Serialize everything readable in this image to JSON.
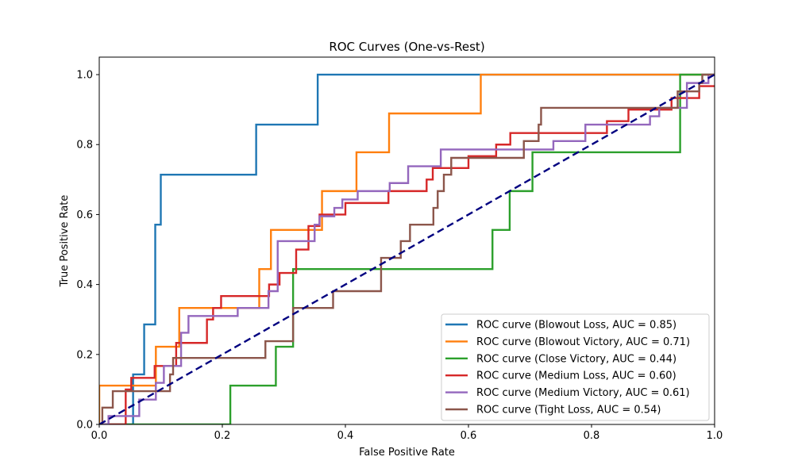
{
  "chart_data": {
    "type": "line",
    "title": "ROC Curves (One-vs-Rest)",
    "xlabel": "False Positive Rate",
    "ylabel": "True Positive Rate",
    "xlim": [
      0.0,
      1.0
    ],
    "ylim": [
      0.0,
      1.05
    ],
    "xticks": [
      "0.0",
      "0.2",
      "0.4",
      "0.6",
      "0.8",
      "1.0"
    ],
    "yticks": [
      "0.0",
      "0.2",
      "0.4",
      "0.6",
      "0.8",
      "1.0"
    ],
    "grid": false,
    "legend_position": "bottom-right",
    "diagonal": {
      "color": "#000080",
      "style": "dashed",
      "points": [
        [
          0,
          0
        ],
        [
          1,
          1
        ]
      ]
    },
    "series": [
      {
        "name": "ROC curve (Blowout Loss, AUC = 0.85)",
        "color": "#1f77b4",
        "points": [
          [
            0,
            0
          ],
          [
            0.055,
            0
          ],
          [
            0.055,
            0.143
          ],
          [
            0.073,
            0.143
          ],
          [
            0.073,
            0.286
          ],
          [
            0.091,
            0.286
          ],
          [
            0.091,
            0.571
          ],
          [
            0.1,
            0.571
          ],
          [
            0.1,
            0.714
          ],
          [
            0.255,
            0.714
          ],
          [
            0.255,
            0.857
          ],
          [
            0.355,
            0.857
          ],
          [
            0.355,
            1.0
          ],
          [
            1.0,
            1.0
          ]
        ]
      },
      {
        "name": "ROC curve (Blowout Victory, AUC = 0.71)",
        "color": "#ff7f0e",
        "points": [
          [
            0,
            0
          ],
          [
            0,
            0.111
          ],
          [
            0.092,
            0.111
          ],
          [
            0.092,
            0.222
          ],
          [
            0.13,
            0.222
          ],
          [
            0.13,
            0.333
          ],
          [
            0.26,
            0.333
          ],
          [
            0.26,
            0.444
          ],
          [
            0.279,
            0.444
          ],
          [
            0.279,
            0.556
          ],
          [
            0.362,
            0.556
          ],
          [
            0.362,
            0.667
          ],
          [
            0.418,
            0.667
          ],
          [
            0.418,
            0.778
          ],
          [
            0.471,
            0.778
          ],
          [
            0.471,
            0.889
          ],
          [
            0.62,
            0.889
          ],
          [
            0.62,
            1.0
          ],
          [
            1.0,
            1.0
          ]
        ]
      },
      {
        "name": "ROC curve (Close Victory, AUC = 0.44)",
        "color": "#2ca02c",
        "points": [
          [
            0,
            0
          ],
          [
            0.213,
            0
          ],
          [
            0.213,
            0.111
          ],
          [
            0.287,
            0.111
          ],
          [
            0.287,
            0.222
          ],
          [
            0.315,
            0.222
          ],
          [
            0.315,
            0.444
          ],
          [
            0.639,
            0.444
          ],
          [
            0.639,
            0.556
          ],
          [
            0.667,
            0.556
          ],
          [
            0.667,
            0.667
          ],
          [
            0.704,
            0.667
          ],
          [
            0.704,
            0.778
          ],
          [
            0.944,
            0.778
          ],
          [
            0.944,
            1.0
          ],
          [
            1.0,
            1.0
          ]
        ]
      },
      {
        "name": "ROC curve (Medium Loss, AUC = 0.60)",
        "color": "#d62728",
        "points": [
          [
            0,
            0
          ],
          [
            0.043,
            0
          ],
          [
            0.043,
            0.1
          ],
          [
            0.052,
            0.1
          ],
          [
            0.052,
            0.133
          ],
          [
            0.09,
            0.133
          ],
          [
            0.09,
            0.167
          ],
          [
            0.125,
            0.167
          ],
          [
            0.125,
            0.233
          ],
          [
            0.175,
            0.233
          ],
          [
            0.175,
            0.3
          ],
          [
            0.185,
            0.3
          ],
          [
            0.185,
            0.333
          ],
          [
            0.198,
            0.333
          ],
          [
            0.198,
            0.367
          ],
          [
            0.276,
            0.367
          ],
          [
            0.276,
            0.4
          ],
          [
            0.293,
            0.4
          ],
          [
            0.293,
            0.433
          ],
          [
            0.32,
            0.433
          ],
          [
            0.32,
            0.5
          ],
          [
            0.34,
            0.5
          ],
          [
            0.34,
            0.567
          ],
          [
            0.358,
            0.567
          ],
          [
            0.358,
            0.6
          ],
          [
            0.4,
            0.6
          ],
          [
            0.4,
            0.633
          ],
          [
            0.47,
            0.633
          ],
          [
            0.47,
            0.667
          ],
          [
            0.532,
            0.667
          ],
          [
            0.532,
            0.7
          ],
          [
            0.542,
            0.7
          ],
          [
            0.542,
            0.733
          ],
          [
            0.6,
            0.733
          ],
          [
            0.6,
            0.767
          ],
          [
            0.645,
            0.767
          ],
          [
            0.645,
            0.8
          ],
          [
            0.668,
            0.8
          ],
          [
            0.668,
            0.833
          ],
          [
            0.77,
            0.833
          ],
          [
            0.77,
            0.833
          ],
          [
            0.825,
            0.833
          ],
          [
            0.825,
            0.867
          ],
          [
            0.86,
            0.867
          ],
          [
            0.86,
            0.9
          ],
          [
            0.93,
            0.9
          ],
          [
            0.93,
            0.933
          ],
          [
            0.975,
            0.933
          ],
          [
            0.975,
            0.967
          ],
          [
            1.0,
            0.967
          ]
        ]
      },
      {
        "name": "ROC curve (Medium Victory, AUC = 0.61)",
        "color": "#9467bd",
        "points": [
          [
            0,
            0
          ],
          [
            0.015,
            0
          ],
          [
            0.015,
            0.024
          ],
          [
            0.065,
            0.024
          ],
          [
            0.065,
            0.071
          ],
          [
            0.092,
            0.071
          ],
          [
            0.092,
            0.119
          ],
          [
            0.105,
            0.119
          ],
          [
            0.105,
            0.167
          ],
          [
            0.133,
            0.167
          ],
          [
            0.133,
            0.214
          ],
          [
            0.133,
            0.214
          ],
          [
            0.133,
            0.262
          ],
          [
            0.145,
            0.262
          ],
          [
            0.145,
            0.31
          ],
          [
            0.155,
            0.31
          ],
          [
            0.155,
            0.31
          ],
          [
            0.225,
            0.31
          ],
          [
            0.225,
            0.333
          ],
          [
            0.275,
            0.333
          ],
          [
            0.275,
            0.381
          ],
          [
            0.29,
            0.381
          ],
          [
            0.29,
            0.524
          ],
          [
            0.35,
            0.524
          ],
          [
            0.35,
            0.571
          ],
          [
            0.358,
            0.571
          ],
          [
            0.358,
            0.595
          ],
          [
            0.382,
            0.595
          ],
          [
            0.382,
            0.619
          ],
          [
            0.395,
            0.619
          ],
          [
            0.395,
            0.643
          ],
          [
            0.42,
            0.643
          ],
          [
            0.42,
            0.667
          ],
          [
            0.472,
            0.667
          ],
          [
            0.472,
            0.69
          ],
          [
            0.502,
            0.69
          ],
          [
            0.502,
            0.738
          ],
          [
            0.555,
            0.738
          ],
          [
            0.555,
            0.786
          ],
          [
            0.738,
            0.786
          ],
          [
            0.738,
            0.81
          ],
          [
            0.79,
            0.81
          ],
          [
            0.79,
            0.857
          ],
          [
            0.895,
            0.857
          ],
          [
            0.895,
            0.881
          ],
          [
            0.91,
            0.881
          ],
          [
            0.91,
            0.905
          ],
          [
            0.955,
            0.905
          ],
          [
            0.955,
            0.976
          ],
          [
            0.99,
            0.976
          ],
          [
            0.99,
            1.0
          ],
          [
            1.0,
            1.0
          ]
        ]
      },
      {
        "name": "ROC curve (Tight Loss, AUC = 0.54)",
        "color": "#8c564b",
        "points": [
          [
            0,
            0
          ],
          [
            0.005,
            0
          ],
          [
            0.005,
            0.048
          ],
          [
            0.022,
            0.048
          ],
          [
            0.022,
            0.095
          ],
          [
            0.115,
            0.095
          ],
          [
            0.115,
            0.143
          ],
          [
            0.12,
            0.143
          ],
          [
            0.12,
            0.19
          ],
          [
            0.27,
            0.19
          ],
          [
            0.27,
            0.238
          ],
          [
            0.315,
            0.238
          ],
          [
            0.315,
            0.333
          ],
          [
            0.38,
            0.333
          ],
          [
            0.38,
            0.381
          ],
          [
            0.458,
            0.381
          ],
          [
            0.458,
            0.476
          ],
          [
            0.49,
            0.476
          ],
          [
            0.49,
            0.524
          ],
          [
            0.505,
            0.524
          ],
          [
            0.505,
            0.571
          ],
          [
            0.543,
            0.571
          ],
          [
            0.543,
            0.619
          ],
          [
            0.55,
            0.619
          ],
          [
            0.55,
            0.667
          ],
          [
            0.56,
            0.667
          ],
          [
            0.56,
            0.714
          ],
          [
            0.572,
            0.714
          ],
          [
            0.572,
            0.762
          ],
          [
            0.69,
            0.762
          ],
          [
            0.69,
            0.81
          ],
          [
            0.714,
            0.81
          ],
          [
            0.714,
            0.857
          ],
          [
            0.718,
            0.857
          ],
          [
            0.718,
            0.905
          ],
          [
            0.94,
            0.905
          ],
          [
            0.94,
            0.952
          ],
          [
            0.975,
            0.952
          ],
          [
            0.975,
            0.976
          ],
          [
            0.98,
            0.976
          ],
          [
            0.98,
            1.0
          ],
          [
            1.0,
            1.0
          ]
        ]
      }
    ]
  }
}
